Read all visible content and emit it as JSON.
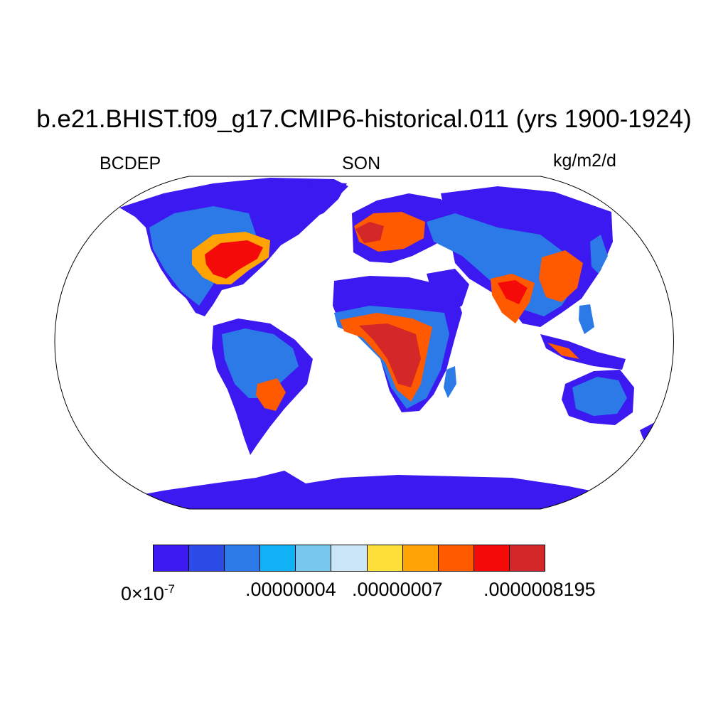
{
  "title": "b.e21.BHIST.f09_g17.CMIP6-historical.011 (yrs 1900-1924)",
  "left_string": "BCDEP",
  "center_string": "SON",
  "right_string": "kg/m2/d",
  "colorbar": {
    "colors": [
      "#3c19f0",
      "#2c4be6",
      "#2b7ae7",
      "#10b1f5",
      "#78c7ee",
      "#cae6f7",
      "#ffe03a",
      "#ffa404",
      "#ff5a00",
      "#f50a0a",
      "#d42828"
    ],
    "labels": [
      {
        "mantissa": "0",
        "times": "×",
        "base": "10",
        "exp": "-7"
      },
      {
        "text": ".00000004"
      },
      {
        "text": ".00000007"
      },
      {
        "text": ".0000008195"
      }
    ]
  }
}
